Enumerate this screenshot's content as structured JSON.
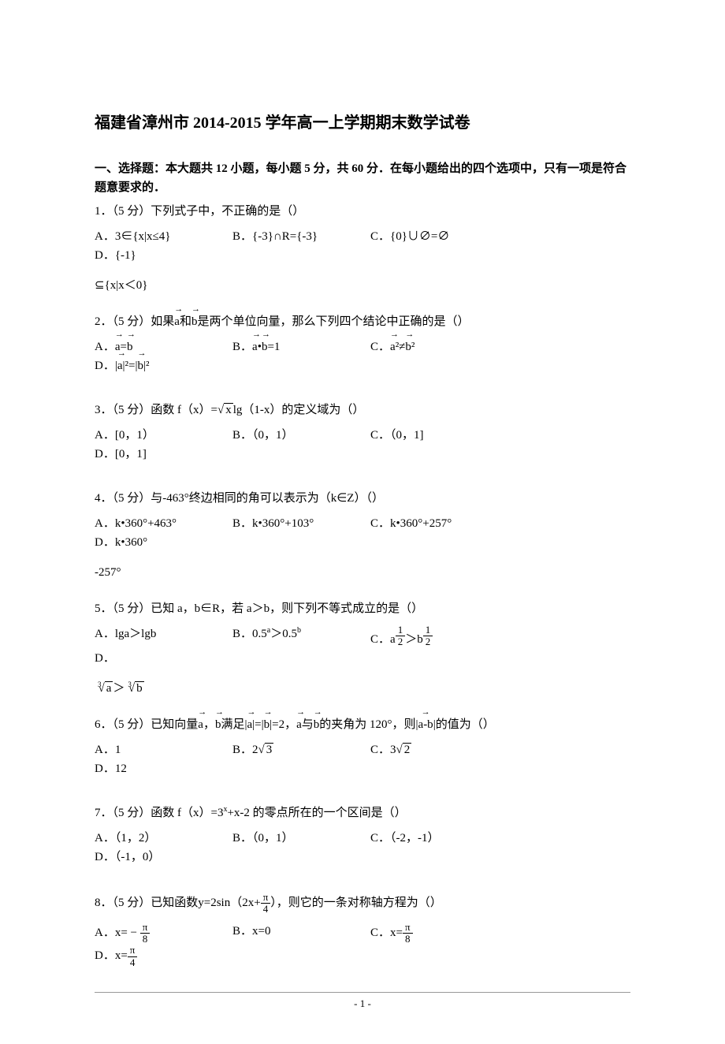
{
  "title": "福建省漳州市 2014-2015 学年高一上学期期末数学试卷",
  "section_heading": "一、选择题：本大题共 12 小题，每小题 5 分，共 60 分．在每小题给出的四个选项中，只有一项是符合题意要求的．",
  "q1": {
    "text": "1．（5 分）下列式子中，不正确的是（）",
    "A": "A．3∈{x|x≤4}",
    "B": "B．{-3}∩R={-3}",
    "C": "C．{0}∪∅=∅",
    "D": "D．{-1}",
    "cont": "⊆{x|x＜0}"
  },
  "q2": {
    "text_a": "2．（5 分）如果",
    "text_b": "和",
    "text_c": "是两个单位向量，那么下列四个结论中正确的是（）",
    "A_pre": "A．",
    "B_pre": "B．",
    "B_post": "=1",
    "C_pre": "C．",
    "D_pre": "D．|",
    "D_mid": "|²=|",
    "D_post": "|²"
  },
  "q3": {
    "text_a": "3．（5 分）函数 f（x）=",
    "text_b": "lg（1-x）的定义域为（）",
    "A": "A．[0，1）",
    "B": "B．（0，1）",
    "C": "C．（0，1]",
    "D": "D．[0，1]"
  },
  "q4": {
    "text": "4．（5 分）与-463°终边相同的角可以表示为（k∈Z）（）",
    "A": "A．k•360°+463°",
    "B": "B．k•360°+103°",
    "C": "C．k•360°+257°",
    "D": "D．k•360°",
    "cont": "-257°"
  },
  "q5": {
    "text": "5．（5 分）已知 a，b∈R，若 a＞b，则下列不等式成立的是（）",
    "A": "A．lga＞lgb",
    "B_pre": "B．0.5",
    "B_mid": "＞0.5",
    "C_pre": "C．",
    "D": "D．",
    "cont_a": "＞"
  },
  "q6": {
    "text_a": "6．（5 分）已知向量",
    "text_b": "，",
    "text_c": "满足|",
    "text_d": "|=|",
    "text_e": "|=2，",
    "text_f": "与",
    "text_g": "的夹角为 120°，则|",
    "text_h": "|的值为（）",
    "A": "A．1",
    "B_pre": "B．",
    "C_pre": "C．",
    "D": "D．12"
  },
  "q7": {
    "text_a": "7．（5 分）函数 f（x）=3",
    "text_b": "+x-2 的零点所在的一个区间是（）",
    "A": "A．（1，2）",
    "B": "B．（0，1）",
    "C": "C．（-2，-1）",
    "D": "D．（-1，0）"
  },
  "q8": {
    "text_a": "8．（5 分）已知函数y=2sin（2x+",
    "text_b": "），则它的一条对称轴方程为（）",
    "A_pre": "A．x= − ",
    "B": "B．x=0",
    "C_pre": "C．x=",
    "D_pre": "D．x="
  },
  "page_num": "- 1 -",
  "vectors": {
    "a": "a",
    "b": "b",
    "ab": "a-b"
  },
  "math": {
    "sqrt_x": "x",
    "sqrt3": "3",
    "sqrt2": "2",
    "two": "2",
    "three": "3",
    "cbrt_a": "a",
    "cbrt_b": "b",
    "pi": "π",
    "eight": "8",
    "four": "4",
    "one": "1",
    "sup_a": "a",
    "sup_b": "b",
    "sup_x": "x",
    "half_num": "1",
    "half_den": "2"
  },
  "colors": {
    "text": "#000000",
    "bg": "#ffffff",
    "border": "#999999"
  },
  "fonts": {
    "body_size": 15,
    "title_size": 20
  }
}
